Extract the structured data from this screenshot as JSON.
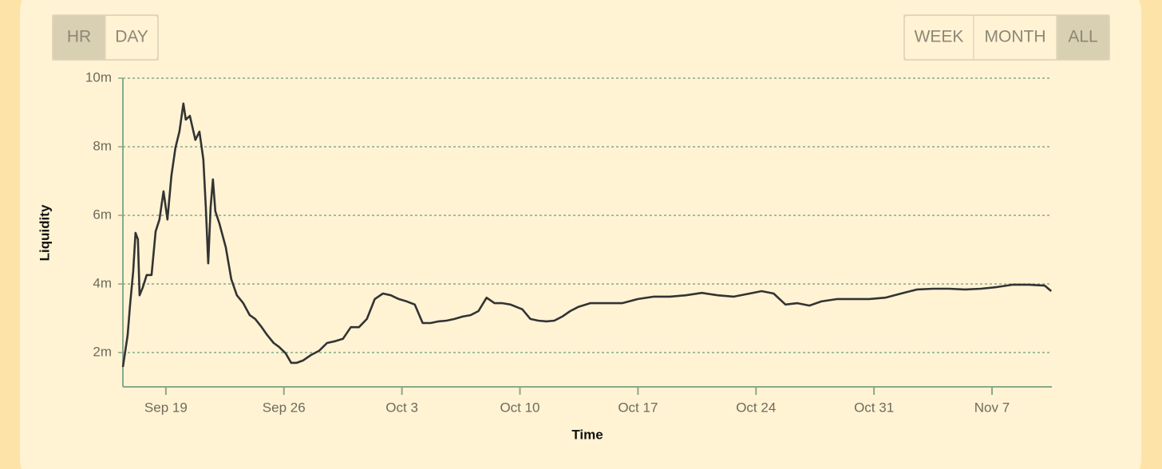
{
  "controls": {
    "left": [
      {
        "label": "HR",
        "selected": true
      },
      {
        "label": "DAY",
        "selected": false
      }
    ],
    "right": [
      {
        "label": "WEEK",
        "selected": false
      },
      {
        "label": "MONTH",
        "selected": false
      },
      {
        "label": "ALL",
        "selected": true
      }
    ]
  },
  "chart_data": {
    "type": "line",
    "x_label": "Time",
    "y_label": "Liquidity",
    "xlim": [
      16.45,
      71.55
    ],
    "xticks": [
      {
        "value": 19,
        "label": "Sep 19"
      },
      {
        "value": 26,
        "label": "Sep 26"
      },
      {
        "value": 33,
        "label": "Oct 3"
      },
      {
        "value": 40,
        "label": "Oct 10"
      },
      {
        "value": 47,
        "label": "Oct 17"
      },
      {
        "value": 54,
        "label": "Oct 24"
      },
      {
        "value": 61,
        "label": "Oct 31"
      },
      {
        "value": 68,
        "label": "Nov 7"
      }
    ],
    "ylim": [
      1,
      10
    ],
    "yticks": [
      {
        "value": 2,
        "label": "2m"
      },
      {
        "value": 4,
        "label": "4m"
      },
      {
        "value": 6,
        "label": "6m"
      },
      {
        "value": 8,
        "label": "8m"
      },
      {
        "value": 10,
        "label": "10m"
      }
    ],
    "grid": true,
    "color": "#333333",
    "x": [
      16.45,
      16.59,
      16.73,
      16.87,
      17.06,
      17.2,
      17.34,
      17.44,
      17.63,
      17.86,
      18.15,
      18.39,
      18.62,
      18.86,
      19.09,
      19.33,
      19.57,
      19.8,
      20.04,
      20.18,
      20.42,
      20.75,
      20.99,
      21.22,
      21.37,
      21.51,
      21.65,
      21.79,
      21.93,
      22.17,
      22.55,
      22.88,
      23.21,
      23.59,
      23.97,
      24.3,
      24.68,
      25.01,
      25.39,
      25.72,
      26.1,
      26.43,
      26.76,
      27.14,
      27.61,
      28.08,
      28.56,
      29.03,
      29.5,
      29.97,
      30.45,
      30.92,
      31.39,
      31.87,
      32.34,
      32.81,
      33.29,
      33.76,
      34.23,
      34.7,
      35.18,
      35.65,
      36.12,
      36.6,
      37.07,
      37.54,
      38.02,
      38.49,
      38.96,
      39.44,
      40.14,
      40.62,
      41.09,
      41.56,
      42.04,
      42.51,
      42.98,
      43.46,
      44.17,
      45.11,
      46.06,
      47.0,
      47.95,
      48.9,
      49.84,
      50.79,
      51.73,
      52.68,
      53.63,
      54.34,
      55.05,
      55.75,
      56.46,
      57.17,
      57.88,
      58.83,
      59.78,
      60.72,
      61.67,
      62.61,
      63.56,
      64.51,
      65.45,
      66.4,
      67.34,
      68.29,
      69.24,
      70.18,
      71.13,
      71.51
    ],
    "values": [
      1.58,
      2.05,
      2.5,
      3.37,
      4.37,
      5.49,
      5.3,
      3.67,
      3.9,
      4.26,
      4.26,
      5.53,
      5.88,
      6.7,
      5.88,
      7.16,
      7.98,
      8.44,
      9.26,
      8.79,
      8.9,
      8.2,
      8.44,
      7.63,
      6.23,
      4.6,
      6.23,
      7.05,
      6.12,
      5.77,
      5.07,
      4.14,
      3.67,
      3.44,
      3.09,
      2.98,
      2.74,
      2.51,
      2.28,
      2.16,
      1.98,
      1.7,
      1.7,
      1.77,
      1.93,
      2.05,
      2.28,
      2.33,
      2.4,
      2.74,
      2.74,
      2.98,
      3.56,
      3.72,
      3.67,
      3.56,
      3.49,
      3.4,
      2.86,
      2.86,
      2.91,
      2.93,
      2.98,
      3.05,
      3.09,
      3.21,
      3.6,
      3.44,
      3.44,
      3.4,
      3.26,
      2.98,
      2.93,
      2.91,
      2.93,
      3.05,
      3.21,
      3.33,
      3.44,
      3.44,
      3.44,
      3.56,
      3.63,
      3.63,
      3.67,
      3.74,
      3.67,
      3.63,
      3.72,
      3.79,
      3.72,
      3.4,
      3.44,
      3.37,
      3.49,
      3.56,
      3.56,
      3.56,
      3.6,
      3.72,
      3.84,
      3.86,
      3.86,
      3.84,
      3.86,
      3.91,
      3.98,
      3.98,
      3.95,
      3.79
    ]
  }
}
